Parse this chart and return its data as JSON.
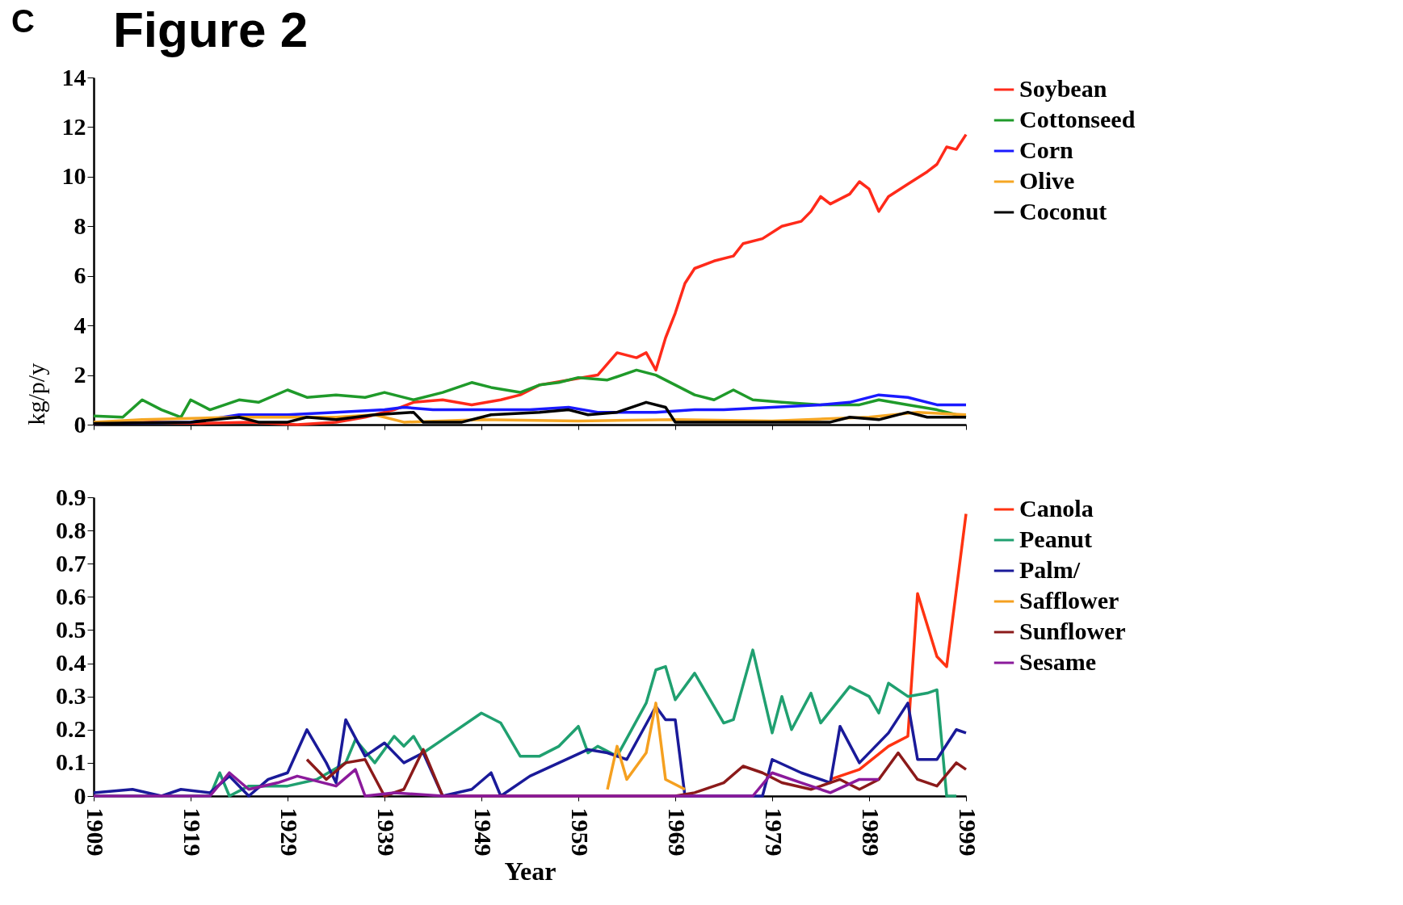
{
  "chart_data": [
    {
      "type": "line",
      "title": "Figure 2",
      "ylabel": "kg/p/y",
      "annotations": [
        "C"
      ],
      "xlim": [
        1909,
        1999
      ],
      "xticks": [
        1909,
        1919,
        1929,
        1939,
        1949,
        1959,
        1969,
        1979,
        1989,
        1999
      ],
      "ylim": [
        0,
        14
      ],
      "yticks": [
        0,
        2,
        4,
        6,
        8,
        10,
        12,
        14
      ],
      "tick_labels": "y",
      "grid": false,
      "legend": "right",
      "marker": "none",
      "line_style": "solid",
      "series": [
        {
          "name": "Soybean",
          "color": "#ff2a1a",
          "x": [
            1909,
            1915,
            1920,
            1925,
            1930,
            1934,
            1937,
            1940,
            1942,
            1945,
            1948,
            1951,
            1953,
            1955,
            1958,
            1961,
            1963,
            1965,
            1966,
            1967,
            1968,
            1969,
            1970,
            1971,
            1973,
            1975,
            1976,
            1978,
            1980,
            1982,
            1983,
            1984,
            1985,
            1987,
            1988,
            1989,
            1990,
            1991,
            1993,
            1995,
            1996,
            1997,
            1998,
            1999
          ],
          "values": [
            0.05,
            0.1,
            0.05,
            0.1,
            0.0,
            0.1,
            0.3,
            0.6,
            0.9,
            1.0,
            0.8,
            1.0,
            1.2,
            1.6,
            1.8,
            2.0,
            2.9,
            2.7,
            2.9,
            2.2,
            3.5,
            4.5,
            5.7,
            6.3,
            6.6,
            6.8,
            7.3,
            7.5,
            8.0,
            8.2,
            8.6,
            9.2,
            8.9,
            9.3,
            9.8,
            9.5,
            8.6,
            9.2,
            9.7,
            10.2,
            10.5,
            11.2,
            11.1,
            11.7
          ]
        },
        {
          "name": "Cottonseed",
          "color": "#1f9a2a",
          "x": [
            1909,
            1912,
            1914,
            1916,
            1918,
            1919,
            1921,
            1924,
            1926,
            1929,
            1931,
            1934,
            1937,
            1939,
            1942,
            1945,
            1948,
            1950,
            1953,
            1955,
            1957,
            1959,
            1962,
            1965,
            1967,
            1969,
            1971,
            1973,
            1975,
            1977,
            1980,
            1984,
            1988,
            1990,
            1993,
            1996,
            1999
          ],
          "values": [
            0.35,
            0.3,
            1.0,
            0.6,
            0.3,
            1.0,
            0.6,
            1.0,
            0.9,
            1.4,
            1.1,
            1.2,
            1.1,
            1.3,
            1.0,
            1.3,
            1.7,
            1.5,
            1.3,
            1.6,
            1.7,
            1.9,
            1.8,
            2.2,
            2.0,
            1.6,
            1.2,
            1.0,
            1.4,
            1.0,
            0.9,
            0.8,
            0.8,
            1.0,
            0.8,
            0.6,
            0.3
          ]
        },
        {
          "name": "Corn",
          "color": "#1a1aff",
          "x": [
            1909,
            1919,
            1924,
            1929,
            1934,
            1939,
            1941,
            1944,
            1949,
            1954,
            1958,
            1961,
            1964,
            1967,
            1971,
            1974,
            1979,
            1984,
            1987,
            1990,
            1993,
            1996,
            1999
          ],
          "values": [
            0.05,
            0.1,
            0.4,
            0.4,
            0.5,
            0.6,
            0.7,
            0.6,
            0.6,
            0.6,
            0.7,
            0.5,
            0.5,
            0.5,
            0.6,
            0.6,
            0.7,
            0.8,
            0.9,
            1.2,
            1.1,
            0.8,
            0.8
          ]
        },
        {
          "name": "Olive",
          "color": "#f5a623",
          "x": [
            1909,
            1914,
            1924,
            1934,
            1938,
            1941,
            1949,
            1959,
            1969,
            1979,
            1989,
            1994,
            1999
          ],
          "values": [
            0.1,
            0.2,
            0.3,
            0.3,
            0.4,
            0.1,
            0.2,
            0.15,
            0.2,
            0.15,
            0.3,
            0.5,
            0.4
          ]
        },
        {
          "name": "Coconut",
          "color": "#000000",
          "x": [
            1909,
            1919,
            1924,
            1926,
            1929,
            1931,
            1934,
            1938,
            1942,
            1943,
            1947,
            1950,
            1955,
            1958,
            1960,
            1963,
            1966,
            1968,
            1969,
            1974,
            1979,
            1985,
            1987,
            1990,
            1993,
            1995,
            1999
          ],
          "values": [
            0.05,
            0.1,
            0.3,
            0.1,
            0.1,
            0.3,
            0.2,
            0.4,
            0.5,
            0.1,
            0.1,
            0.4,
            0.5,
            0.6,
            0.4,
            0.5,
            0.9,
            0.7,
            0.1,
            0.1,
            0.1,
            0.1,
            0.3,
            0.2,
            0.5,
            0.3,
            0.3
          ]
        }
      ]
    },
    {
      "type": "line",
      "xlabel": "Year",
      "xlim": [
        1909,
        1999
      ],
      "xticks": [
        1909,
        1919,
        1929,
        1939,
        1949,
        1959,
        1969,
        1979,
        1989,
        1999
      ],
      "ylim": [
        0,
        0.9
      ],
      "yticks": [
        0,
        0.1,
        0.2,
        0.3,
        0.4,
        0.5,
        0.6,
        0.7,
        0.8,
        0.9
      ],
      "grid": false,
      "legend": "right",
      "marker": "none",
      "line_style": "solid",
      "series": [
        {
          "name": "Canola",
          "color": "#ff3311",
          "x": [
            1985,
            1988,
            1991,
            1993,
            1994,
            1996,
            1997,
            1999
          ],
          "values": [
            0.05,
            0.08,
            0.15,
            0.18,
            0.61,
            0.42,
            0.39,
            0.85
          ]
        },
        {
          "name": "Peanut",
          "color": "#20a070",
          "x": [
            1909,
            1921,
            1922,
            1923,
            1925,
            1929,
            1932,
            1935,
            1936,
            1938,
            1940,
            1941,
            1942,
            1943,
            1945,
            1949,
            1951,
            1953,
            1955,
            1957,
            1959,
            1960,
            1961,
            1963,
            1966,
            1967,
            1968,
            1969,
            1971,
            1974,
            1975,
            1977,
            1979,
            1980,
            1981,
            1983,
            1984,
            1987,
            1989,
            1990,
            1991,
            1993,
            1995,
            1996,
            1997,
            1998
          ],
          "values": [
            0,
            0,
            0.07,
            0.0,
            0.03,
            0.03,
            0.05,
            0.1,
            0.17,
            0.1,
            0.18,
            0.15,
            0.18,
            0.13,
            0.17,
            0.25,
            0.22,
            0.12,
            0.12,
            0.15,
            0.21,
            0.13,
            0.15,
            0.12,
            0.28,
            0.38,
            0.39,
            0.29,
            0.37,
            0.22,
            0.23,
            0.44,
            0.19,
            0.3,
            0.2,
            0.31,
            0.22,
            0.33,
            0.3,
            0.25,
            0.34,
            0.3,
            0.31,
            0.32,
            0.0,
            0.0
          ]
        },
        {
          "name": "Palm/",
          "color": "#1a1a99",
          "x": [
            1909,
            1913,
            1916,
            1918,
            1921,
            1923,
            1925,
            1927,
            1929,
            1931,
            1933,
            1934,
            1935,
            1937,
            1939,
            1941,
            1943,
            1945,
            1948,
            1950,
            1951,
            1954,
            1957,
            1960,
            1962,
            1964,
            1967,
            1968,
            1969,
            1970,
            1978,
            1979,
            1982,
            1985,
            1986,
            1988,
            1991,
            1993,
            1994,
            1996,
            1998,
            1999
          ],
          "values": [
            0.01,
            0.02,
            0.0,
            0.02,
            0.01,
            0.06,
            0.0,
            0.05,
            0.07,
            0.2,
            0.1,
            0.04,
            0.23,
            0.12,
            0.16,
            0.1,
            0.13,
            0.0,
            0.02,
            0.07,
            0.0,
            0.06,
            0.1,
            0.14,
            0.13,
            0.11,
            0.27,
            0.23,
            0.23,
            0.0,
            0.0,
            0.11,
            0.07,
            0.04,
            0.21,
            0.1,
            0.19,
            0.28,
            0.11,
            0.11,
            0.2,
            0.19
          ]
        },
        {
          "name": "Safflower",
          "color": "#f5a020",
          "x": [
            1962,
            1963,
            1964,
            1966,
            1967,
            1968,
            1970
          ],
          "values": [
            0.02,
            0.15,
            0.05,
            0.13,
            0.28,
            0.05,
            0.02
          ]
        },
        {
          "name": "Sunflower",
          "color": "#8b1a1a",
          "x": [
            1931,
            1933,
            1935,
            1937,
            1939,
            1941,
            1943,
            1945,
            1969,
            1971,
            1974,
            1976,
            1978,
            1980,
            1983,
            1986,
            1988,
            1990,
            1992,
            1994,
            1996,
            1998,
            1999
          ],
          "values": [
            0.11,
            0.05,
            0.1,
            0.11,
            0.0,
            0.02,
            0.14,
            0.0,
            0.0,
            0.01,
            0.04,
            0.09,
            0.07,
            0.04,
            0.02,
            0.05,
            0.02,
            0.05,
            0.13,
            0.05,
            0.03,
            0.1,
            0.08
          ]
        },
        {
          "name": "Sesame",
          "color": "#8b1a9b",
          "x": [
            1909,
            1921,
            1923,
            1925,
            1928,
            1930,
            1934,
            1936,
            1937,
            1940,
            1945,
            1977,
            1979,
            1982,
            1985,
            1988,
            1990
          ],
          "values": [
            0,
            0,
            0.07,
            0.02,
            0.04,
            0.06,
            0.03,
            0.08,
            0.0,
            0.01,
            0.0,
            0.0,
            0.07,
            0.04,
            0.01,
            0.05,
            0.05
          ]
        }
      ]
    }
  ]
}
